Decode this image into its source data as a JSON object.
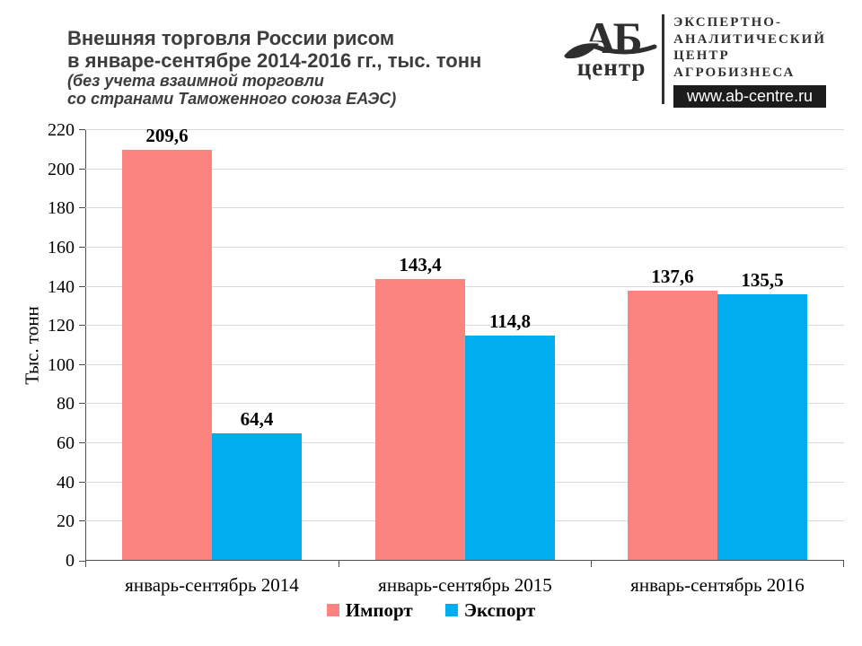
{
  "header": {
    "title_lines": [
      "Внешняя торговля России рисом",
      "в январе-сентябре 2014-2016 гг., тыс. тонн"
    ],
    "subtitle_lines": [
      "(без учета взаимной торговли",
      "со странами Таможенного союза ЕАЭС)"
    ]
  },
  "logo": {
    "acronym": "АБ",
    "name": "центр",
    "org_lines": [
      "ЭКСПЕРТНО-",
      "АНАЛИТИЧЕСКИЙ",
      "ЦЕНТР",
      "АГРОБИЗНЕСА"
    ],
    "website": "www.ab-centre.ru"
  },
  "chart_data": {
    "type": "bar",
    "title": "Внешняя торговля России рисом в январе-сентябре 2014-2016 гг., тыс. тонн (без учета взаимной торговли со странами Таможенного союза ЕАЭС)",
    "ylabel": "Тыс. тонн",
    "xlabel": "",
    "categories": [
      "январь-сентябрь 2014",
      "январь-сентябрь 2015",
      "январь-сентябрь 2016"
    ],
    "series": [
      {
        "name": "Импорт",
        "color": "#fb8380",
        "values": [
          209.6,
          143.4,
          137.6
        ],
        "labels": [
          "209,6",
          "143,4",
          "137,6"
        ]
      },
      {
        "name": "Экспорт",
        "color": "#00aeef",
        "values": [
          64.4,
          114.8,
          135.5
        ],
        "labels": [
          "64,4",
          "114,8",
          "135,5"
        ]
      }
    ],
    "ylim": [
      0,
      220
    ],
    "yticks": [
      0,
      20,
      40,
      60,
      80,
      100,
      120,
      140,
      160,
      180,
      200,
      220
    ],
    "ytick_step": 20,
    "grid": true,
    "legend_position": "bottom",
    "colors": {
      "gridline": "#d9d9d9",
      "axis": "#4d4d4d",
      "import": "#fb8380",
      "export": "#00aeef"
    }
  }
}
